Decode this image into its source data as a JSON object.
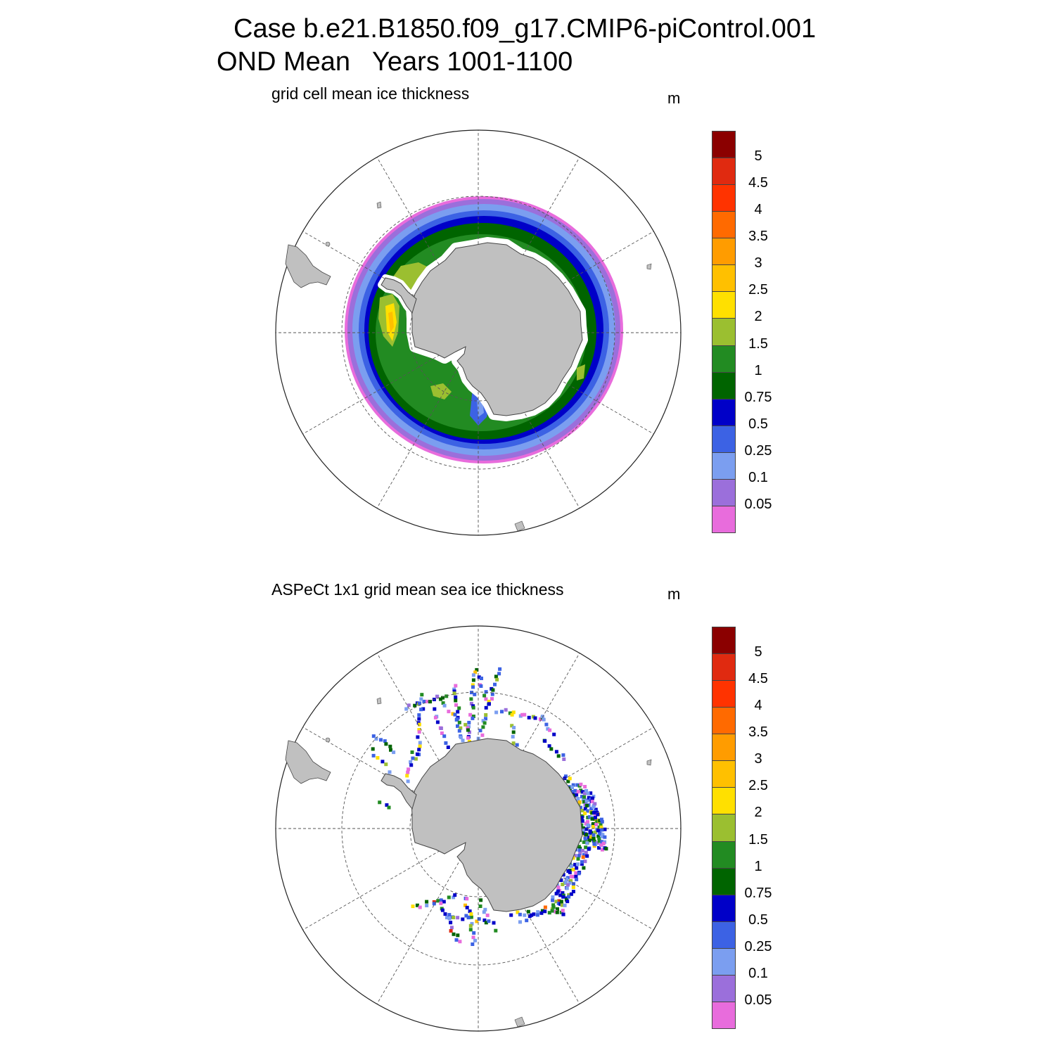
{
  "title": {
    "line1": "Case b.e21.B1850.f09_g17.CMIP6-piControl.001",
    "line2": "OND Mean   Years 1001-1100"
  },
  "panels": [
    {
      "name": "model",
      "title": "grid cell mean ice thickness",
      "units": "m"
    },
    {
      "name": "obs",
      "title": "ASPeCt 1x1 grid mean sea ice thickness",
      "units": "m"
    }
  ],
  "colorbar": {
    "labels": [
      "0.05",
      "0.1",
      "0.25",
      "0.5",
      "0.75",
      "1",
      "1.5",
      "2",
      "2.5",
      "3",
      "3.5",
      "4",
      "4.5",
      "5"
    ],
    "colors": [
      "#e86cdc",
      "#9b6fdb",
      "#7b9ef0",
      "#3c62e4",
      "#0000c8",
      "#006400",
      "#228b22",
      "#9bbf30",
      "#ffe000",
      "#ffc000",
      "#ff9c00",
      "#ff6a00",
      "#ff3300",
      "#e02a10",
      "#8b0000"
    ]
  },
  "map_colors": {
    "land": "#c0c0c0",
    "land_edge": "#444444",
    "grid": "#555555",
    "ice_free_shelf": "#ffffff"
  },
  "chart_data": {
    "type": "heatmap",
    "projection": "south-polar-stereographic",
    "variable_units": "m",
    "contour_levels": [
      0.05,
      0.1,
      0.25,
      0.5,
      0.75,
      1,
      1.5,
      2,
      2.5,
      3,
      3.5,
      4,
      4.5,
      5
    ],
    "maps": [
      {
        "title": "grid cell mean ice thickness",
        "field": "continuous ice pack surrounding Antarctica",
        "band_thickness_m": [
          0.05,
          0.1,
          0.25,
          0.5,
          0.75,
          1,
          1.5,
          2
        ],
        "notes": "thicker ice (1.5–2.5 m) in the Weddell Sea and along the Antarctic Peninsula"
      },
      {
        "title": "ASPeCt 1x1 grid mean sea ice thickness",
        "field": "sparse ship-track observations",
        "notes": "dense observations east of the continent, scattered tracks elsewhere"
      }
    ]
  }
}
